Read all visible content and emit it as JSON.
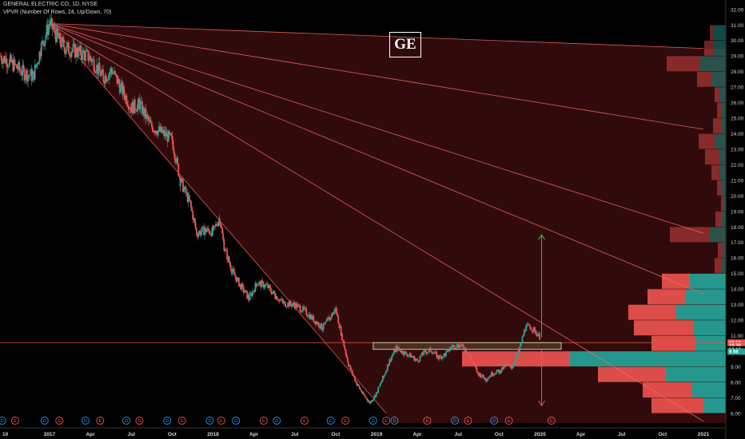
{
  "header": {
    "symbol_line": "GENERAL ELECTRIC CO, 1D, NYSE",
    "indicator_line": "VPVR (Number Of Rows, 24, Up/Down, 70)"
  },
  "ticker_box": "GE",
  "colors": {
    "up": "#26a69a",
    "down": "#ef5350",
    "fan": "#ff6b6b",
    "zone_fill": "#5a1414",
    "resistance_box": "#c8c890",
    "green_arrow": "#4caf50",
    "red_arrow": "#ef5350"
  },
  "chart_data": {
    "type": "candlestick",
    "y_axis": {
      "min": 5.4,
      "max": 32.4,
      "ticks": [
        6.0,
        7.0,
        8.0,
        9.0,
        10.0,
        11.0,
        12.0,
        13.0,
        14.0,
        15.0,
        16.0,
        17.0,
        18.0,
        19.0,
        20.0,
        21.0,
        22.0,
        23.0,
        24.0,
        25.0,
        26.0,
        27.0,
        28.0,
        29.0,
        30.0,
        31.0,
        32.0
      ],
      "tick_labels": [
        "6.00",
        "7.00",
        "8.00",
        "9.00",
        "10.00",
        "11.00",
        "12.00",
        "13.00",
        "14.00",
        "15.00",
        "16.00",
        "17.00",
        "18.00",
        "19.00",
        "20.00",
        "21.00",
        "22.00",
        "23.00",
        "24.00",
        "25.00",
        "26.00",
        "27.00",
        "28.00",
        "29.00",
        "30.00",
        "31.00",
        "32.00"
      ]
    },
    "x_axis": {
      "ticks": [
        {
          "label": "10",
          "t": 2016.79
        },
        {
          "label": "2017",
          "t": 2017.0
        },
        {
          "label": "Apr",
          "t": 2017.25
        },
        {
          "label": "Jul",
          "t": 2017.5
        },
        {
          "label": "Oct",
          "t": 2017.75
        },
        {
          "label": "2018",
          "t": 2018.0
        },
        {
          "label": "Apr",
          "t": 2018.25
        },
        {
          "label": "Jul",
          "t": 2018.5
        },
        {
          "label": "Oct",
          "t": 2018.75
        },
        {
          "label": "2019",
          "t": 2019.0
        },
        {
          "label": "Apr",
          "t": 2019.25
        },
        {
          "label": "Jul",
          "t": 2019.5
        },
        {
          "label": "Oct",
          "t": 2019.75
        },
        {
          "label": "2020",
          "t": 2020.0
        },
        {
          "label": "Apr",
          "t": 2020.25
        },
        {
          "label": "Jul",
          "t": 2020.5
        },
        {
          "label": "Oct",
          "t": 2020.75
        },
        {
          "label": "2021",
          "t": 2021.0
        }
      ]
    },
    "price_path": [
      [
        2016.7,
        29.0
      ],
      [
        2016.76,
        28.6
      ],
      [
        2016.83,
        28.0
      ],
      [
        2016.9,
        27.7
      ],
      [
        2016.95,
        29.6
      ],
      [
        2017.0,
        31.1
      ],
      [
        2017.06,
        30.0
      ],
      [
        2017.1,
        29.5
      ],
      [
        2017.17,
        29.3
      ],
      [
        2017.25,
        28.9
      ],
      [
        2017.33,
        27.6
      ],
      [
        2017.38,
        28.1
      ],
      [
        2017.45,
        26.7
      ],
      [
        2017.5,
        25.7
      ],
      [
        2017.55,
        25.9
      ],
      [
        2017.62,
        24.5
      ],
      [
        2017.7,
        24.0
      ],
      [
        2017.75,
        23.6
      ],
      [
        2017.8,
        21.0
      ],
      [
        2017.86,
        19.5
      ],
      [
        2017.9,
        17.6
      ],
      [
        2017.95,
        17.8
      ],
      [
        2018.0,
        17.7
      ],
      [
        2018.04,
        18.6
      ],
      [
        2018.07,
        16.6
      ],
      [
        2018.12,
        15.1
      ],
      [
        2018.17,
        14.2
      ],
      [
        2018.22,
        13.4
      ],
      [
        2018.27,
        14.4
      ],
      [
        2018.33,
        14.2
      ],
      [
        2018.38,
        13.6
      ],
      [
        2018.43,
        13.1
      ],
      [
        2018.5,
        13.0
      ],
      [
        2018.56,
        12.6
      ],
      [
        2018.62,
        12.0
      ],
      [
        2018.67,
        11.5
      ],
      [
        2018.71,
        12.1
      ],
      [
        2018.75,
        12.7
      ],
      [
        2018.79,
        10.9
      ],
      [
        2018.83,
        9.1
      ],
      [
        2018.88,
        7.9
      ],
      [
        2018.92,
        7.2
      ],
      [
        2018.96,
        6.7
      ],
      [
        2019.0,
        7.3
      ],
      [
        2019.04,
        8.3
      ],
      [
        2019.08,
        9.4
      ],
      [
        2019.12,
        10.2
      ],
      [
        2019.17,
        9.9
      ],
      [
        2019.21,
        9.7
      ],
      [
        2019.25,
        9.4
      ],
      [
        2019.29,
        9.9
      ],
      [
        2019.33,
        10.1
      ],
      [
        2019.38,
        9.6
      ],
      [
        2019.42,
        9.8
      ],
      [
        2019.46,
        10.3
      ],
      [
        2019.5,
        10.4
      ],
      [
        2019.54,
        10.2
      ],
      [
        2019.58,
        9.5
      ],
      [
        2019.62,
        8.6
      ],
      [
        2019.67,
        8.2
      ],
      [
        2019.71,
        8.6
      ],
      [
        2019.75,
        8.7
      ],
      [
        2019.79,
        9.1
      ],
      [
        2019.83,
        9.0
      ],
      [
        2019.87,
        10.0
      ],
      [
        2019.91,
        11.5
      ],
      [
        2019.94,
        11.6
      ],
      [
        2019.97,
        11.3
      ],
      [
        2020.0,
        10.9
      ]
    ],
    "fan_lines": [
      {
        "from": [
          2017.0,
          31.1
        ],
        "to": [
          2021.0,
          24.3
        ]
      },
      {
        "from": [
          2017.0,
          31.1
        ],
        "to": [
          2021.0,
          17.6
        ]
      },
      {
        "from": [
          2017.0,
          31.1
        ],
        "to": [
          2021.0,
          13.7
        ]
      },
      {
        "from": [
          2017.0,
          31.1
        ],
        "to": [
          2021.0,
          5.5
        ]
      },
      {
        "from": [
          2017.0,
          31.1
        ],
        "to": [
          2019.06,
          6.0
        ]
      },
      {
        "from": [
          2017.0,
          31.1
        ],
        "to": [
          2021.0,
          29.5
        ]
      }
    ],
    "horizontal_line": {
      "price": 10.56
    },
    "resistance_zone": {
      "t_start": 2018.98,
      "t_end": 2020.13,
      "low": 10.13,
      "high": 10.56
    },
    "arrow_up": {
      "t": 2020.01,
      "from": 10.9,
      "to": 17.5
    },
    "arrow_down": {
      "t": 2020.01,
      "from": 10.1,
      "to": 6.5
    },
    "price_badges": [
      {
        "label": "10.56",
        "price": 10.56,
        "color": "#ef5350"
      },
      {
        "label": "10.38",
        "price": 10.38,
        "color": "#ef5350"
      },
      {
        "label": "10.13",
        "price": 10.13,
        "color": "#000000"
      },
      {
        "label": "9.98",
        "price": 9.98,
        "color": "#26a69a"
      }
    ],
    "volume_profile": [
      {
        "low": 6.0,
        "high": 7.0,
        "up": 0.28,
        "down": 0.65
      },
      {
        "low": 7.0,
        "high": 8.0,
        "up": 0.42,
        "down": 0.62
      },
      {
        "low": 8.0,
        "high": 9.0,
        "up": 0.75,
        "down": 0.85
      },
      {
        "low": 9.0,
        "high": 10.0,
        "up": 1.95,
        "down": 1.35
      },
      {
        "low": 10.0,
        "high": 11.0,
        "up": 0.38,
        "down": 0.55
      },
      {
        "low": 11.0,
        "high": 12.0,
        "up": 0.4,
        "down": 0.75
      },
      {
        "low": 12.0,
        "high": 13.0,
        "up": 0.62,
        "down": 0.6
      },
      {
        "low": 13.0,
        "high": 14.0,
        "up": 0.5,
        "down": 0.48
      },
      {
        "low": 14.0,
        "high": 15.0,
        "up": 0.45,
        "down": 0.35
      },
      {
        "low": 15.0,
        "high": 16.0,
        "up": 0.06,
        "down": 0.08
      },
      {
        "low": 16.0,
        "high": 17.0,
        "up": 0.04,
        "down": 0.06
      },
      {
        "low": 17.0,
        "high": 18.0,
        "up": 0.2,
        "down": 0.5
      },
      {
        "low": 18.0,
        "high": 19.0,
        "up": 0.05,
        "down": 0.08
      },
      {
        "low": 19.0,
        "high": 20.0,
        "up": 0.03,
        "down": 0.03
      },
      {
        "low": 20.0,
        "high": 21.0,
        "up": 0.06,
        "down": 0.05
      },
      {
        "low": 21.0,
        "high": 22.0,
        "up": 0.08,
        "down": 0.1
      },
      {
        "low": 22.0,
        "high": 23.0,
        "up": 0.08,
        "down": 0.18
      },
      {
        "low": 23.0,
        "high": 24.0,
        "up": 0.14,
        "down": 0.2
      },
      {
        "low": 24.0,
        "high": 25.0,
        "up": 0.06,
        "down": 0.1
      },
      {
        "low": 25.0,
        "high": 26.0,
        "up": 0.06,
        "down": 0.05
      },
      {
        "low": 26.0,
        "high": 27.0,
        "up": 0.08,
        "down": 0.06
      },
      {
        "low": 27.0,
        "high": 28.0,
        "up": 0.18,
        "down": 0.18
      },
      {
        "low": 28.0,
        "high": 29.0,
        "up": 0.32,
        "down": 0.42
      },
      {
        "low": 29.0,
        "high": 30.0,
        "up": 0.15,
        "down": 0.12
      },
      {
        "low": 30.0,
        "high": 31.0,
        "up": 0.15,
        "down": 0.05
      }
    ],
    "events": [
      {
        "label": "D",
        "t": 2016.71,
        "type": "dividend"
      },
      {
        "label": "E",
        "t": 2016.79,
        "type": "earnings"
      },
      {
        "label": "D",
        "t": 2016.97,
        "type": "dividend"
      },
      {
        "label": "E",
        "t": 2017.06,
        "type": "earnings"
      },
      {
        "label": "D",
        "t": 2017.22,
        "type": "dividend"
      },
      {
        "label": "E",
        "t": 2017.31,
        "type": "earnings"
      },
      {
        "label": "D",
        "t": 2017.47,
        "type": "dividend"
      },
      {
        "label": "E",
        "t": 2017.55,
        "type": "earnings"
      },
      {
        "label": "D",
        "t": 2017.72,
        "type": "dividend"
      },
      {
        "label": "E",
        "t": 2017.81,
        "type": "earnings"
      },
      {
        "label": "D",
        "t": 2017.98,
        "type": "dividend"
      },
      {
        "label": "E",
        "t": 2018.05,
        "type": "earnings"
      },
      {
        "label": "D",
        "t": 2018.14,
        "type": "dividend"
      },
      {
        "label": "E",
        "t": 2018.31,
        "type": "earnings"
      },
      {
        "label": "D",
        "t": 2018.39,
        "type": "dividend"
      },
      {
        "label": "E",
        "t": 2018.56,
        "type": "earnings"
      },
      {
        "label": "D",
        "t": 2018.72,
        "type": "dividend"
      },
      {
        "label": "E",
        "t": 2018.81,
        "type": "earnings"
      },
      {
        "label": "D",
        "t": 2018.98,
        "type": "dividend"
      },
      {
        "label": "E",
        "t": 2019.06,
        "type": "earnings"
      },
      {
        "label": "D",
        "t": 2019.11,
        "type": "dividend"
      },
      {
        "label": "E",
        "t": 2019.31,
        "type": "earnings"
      },
      {
        "label": "D",
        "t": 2019.48,
        "type": "dividend"
      },
      {
        "label": "E",
        "t": 2019.56,
        "type": "earnings"
      },
      {
        "label": "D",
        "t": 2019.72,
        "type": "dividend"
      },
      {
        "label": "E",
        "t": 2019.81,
        "type": "earnings"
      },
      {
        "label": "E",
        "t": 2020.07,
        "type": "earnings"
      }
    ]
  }
}
